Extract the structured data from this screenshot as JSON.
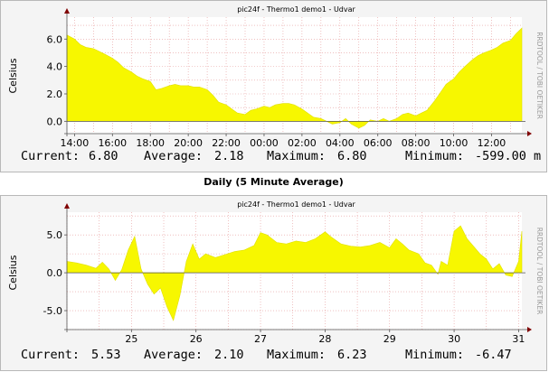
{
  "section_title": "Daily (5 Minute Average)",
  "colors": {
    "area": "#f7f700",
    "area_edge": "#e0e000",
    "grid": "#e59a9a",
    "axis": "#555555",
    "arrow": "#800000",
    "background": "#f4f4f4",
    "plot_bg": "#ffffff"
  },
  "chart_data": [
    {
      "type": "area",
      "title": "pic24f - Thermo1 demo1 - Udvar",
      "ylabel": "Celsius",
      "watermark": "RRDTOOL / TOBI OETIKER",
      "ylim": [
        -0.9,
        7.6
      ],
      "yticks": [
        0,
        2,
        4,
        6
      ],
      "ytick_labels": [
        "0.0",
        "2.0",
        "4.0",
        "6.0"
      ],
      "xlim": [
        13.6,
        37.6
      ],
      "xticks": [
        14,
        16,
        18,
        20,
        22,
        24,
        26,
        28,
        30,
        32,
        34,
        36
      ],
      "xtick_labels": [
        "14:00",
        "16:00",
        "18:00",
        "20:00",
        "22:00",
        "00:00",
        "02:00",
        "04:00",
        "06:00",
        "08:00",
        "10:00",
        "12:00"
      ],
      "grid": true,
      "x": [
        13.6,
        14,
        14.3,
        14.6,
        15,
        15.3,
        15.6,
        16,
        16.3,
        16.6,
        17,
        17.3,
        17.6,
        18,
        18.3,
        18.6,
        19,
        19.3,
        19.6,
        20,
        20.3,
        20.6,
        21,
        21.3,
        21.6,
        22,
        22.3,
        22.6,
        23,
        23.3,
        23.6,
        24,
        24.3,
        24.6,
        25,
        25.3,
        25.6,
        26,
        26.3,
        26.6,
        27,
        27.3,
        27.6,
        28,
        28.3,
        28.6,
        29,
        29.3,
        29.6,
        30,
        30.3,
        30.6,
        31,
        31.3,
        31.6,
        32,
        32.3,
        32.6,
        33,
        33.3,
        33.6,
        34,
        34.3,
        34.6,
        35,
        35.3,
        35.6,
        36,
        36.3,
        36.6,
        37,
        37.3,
        37.6
      ],
      "values": [
        6.3,
        6.0,
        5.6,
        5.4,
        5.3,
        5.1,
        4.9,
        4.6,
        4.3,
        3.9,
        3.6,
        3.3,
        3.1,
        2.9,
        2.3,
        2.4,
        2.6,
        2.7,
        2.6,
        2.6,
        2.5,
        2.5,
        2.3,
        1.9,
        1.4,
        1.2,
        0.9,
        0.6,
        0.5,
        0.8,
        0.9,
        1.1,
        1.0,
        1.2,
        1.3,
        1.3,
        1.2,
        0.9,
        0.6,
        0.3,
        0.2,
        0.0,
        -0.2,
        -0.1,
        0.2,
        -0.2,
        -0.5,
        -0.3,
        0.1,
        0.0,
        0.2,
        0.0,
        0.2,
        0.5,
        0.6,
        0.4,
        0.6,
        0.8,
        1.5,
        2.1,
        2.7,
        3.1,
        3.6,
        4.0,
        4.5,
        4.8,
        5.0,
        5.2,
        5.4,
        5.7,
        5.9,
        6.4,
        6.8
      ],
      "legend": [
        {
          "label": "Current:",
          "value": "6.80"
        },
        {
          "label": "Average:",
          "value": "2.18"
        },
        {
          "label": "Maximum:",
          "value": "6.80"
        },
        {
          "label": "Minimum:",
          "value": "-599.00 m"
        }
      ]
    },
    {
      "type": "area",
      "title": "pic24f - Thermo1 demo1 - Udvar",
      "ylabel": "Celsius",
      "watermark": "RRDTOOL / TOBI OETIKER",
      "ylim": [
        -7.5,
        8
      ],
      "yticks": [
        -5,
        0,
        5
      ],
      "ytick_labels": [
        "-5.0",
        "0.0",
        "5.0"
      ],
      "xlim": [
        24.0,
        31.05
      ],
      "xticks": [
        25,
        26,
        27,
        28,
        29,
        30,
        31
      ],
      "xtick_labels": [
        "25",
        "26",
        "27",
        "28",
        "29",
        "30",
        "31"
      ],
      "grid": true,
      "x": [
        24.0,
        24.15,
        24.3,
        24.45,
        24.55,
        24.65,
        24.75,
        24.85,
        24.95,
        25.05,
        25.15,
        25.25,
        25.35,
        25.45,
        25.55,
        25.65,
        25.75,
        25.85,
        25.95,
        26.05,
        26.15,
        26.3,
        26.45,
        26.6,
        26.75,
        26.9,
        27.0,
        27.1,
        27.25,
        27.4,
        27.55,
        27.7,
        27.85,
        28.0,
        28.1,
        28.25,
        28.4,
        28.55,
        28.7,
        28.85,
        29.0,
        29.1,
        29.2,
        29.3,
        29.45,
        29.55,
        29.65,
        29.75,
        29.8,
        29.9,
        30.0,
        30.1,
        30.2,
        30.3,
        30.4,
        30.5,
        30.6,
        30.7,
        30.8,
        30.9,
        31.0,
        31.05
      ],
      "values": [
        1.5,
        1.3,
        1.0,
        0.6,
        1.4,
        0.5,
        -1.0,
        0.4,
        3.0,
        4.8,
        0.5,
        -1.5,
        -2.8,
        -2.0,
        -4.5,
        -6.3,
        -3.0,
        1.5,
        3.8,
        1.8,
        2.5,
        2.0,
        2.4,
        2.8,
        3.0,
        3.6,
        5.3,
        5.0,
        4.0,
        3.8,
        4.2,
        4.0,
        4.5,
        5.4,
        4.7,
        3.8,
        3.5,
        3.4,
        3.6,
        4.0,
        3.3,
        4.5,
        3.8,
        3.0,
        2.5,
        1.3,
        1.0,
        -0.2,
        1.5,
        1.0,
        5.5,
        6.2,
        4.5,
        3.5,
        2.5,
        1.8,
        0.5,
        1.2,
        -0.3,
        -0.5,
        1.5,
        5.5
      ],
      "legend": [
        {
          "label": "Current:",
          "value": "5.53"
        },
        {
          "label": "Average:",
          "value": "2.10"
        },
        {
          "label": "Maximum:",
          "value": "6.23"
        },
        {
          "label": "Minimum:",
          "value": "-6.47"
        }
      ]
    }
  ]
}
